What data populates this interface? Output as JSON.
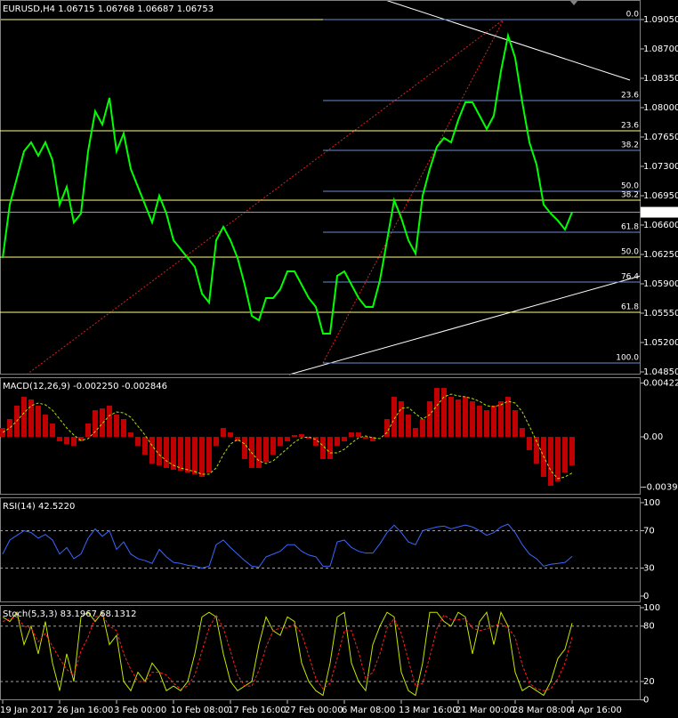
{
  "chart_data": [
    {
      "type": "line",
      "title": "EURUSD,H4  1.06715 1.06768 1.06687 1.06753",
      "color": "#00ff00",
      "values": [
        1.06207,
        1.06844,
        1.07162,
        1.0748,
        1.07586,
        1.07427,
        1.07586,
        1.07374,
        1.06844,
        1.07056,
        1.06632,
        1.06738,
        1.0748,
        1.07957,
        1.07798,
        1.08116,
        1.0748,
        1.07692,
        1.07268,
        1.07056,
        1.06844,
        1.06632,
        1.0695,
        1.06738,
        1.06419,
        1.06313,
        1.06207,
        1.06101,
        1.05783,
        1.05677,
        1.06419,
        1.06579,
        1.06419,
        1.06207,
        1.05889,
        1.05518,
        1.05465,
        1.0573,
        1.0573,
        1.05836,
        1.06048,
        1.06048,
        1.05889,
        1.0573,
        1.05624,
        1.05306,
        1.05306,
        1.05995,
        1.06048,
        1.05889,
        1.0573,
        1.05624,
        1.05624,
        1.05942,
        1.06419,
        1.06897,
        1.06685,
        1.06419,
        1.0626,
        1.0695,
        1.07268,
        1.07533,
        1.07639,
        1.07586,
        1.07851,
        1.08063,
        1.08063,
        1.07904,
        1.07745,
        1.07904,
        1.08435,
        1.08859,
        1.08594,
        1.08063,
        1.07586,
        1.07321,
        1.06844,
        1.06738,
        1.06653,
        1.06547,
        1.06753
      ],
      "ylim": [
        1.04818,
        1.09283
      ],
      "yticks": [
        {
          "value": 1.0905,
          "label": "1.09050"
        },
        {
          "value": 1.087,
          "label": "1.08700"
        },
        {
          "value": 1.0835,
          "label": "1.08350"
        },
        {
          "value": 1.08,
          "label": "1.08000"
        },
        {
          "value": 1.0765,
          "label": "1.07650"
        },
        {
          "value": 1.073,
          "label": "1.07300"
        },
        {
          "value": 1.0695,
          "label": "1.06950"
        },
        {
          "value": 1.066,
          "label": "1.06600"
        },
        {
          "value": 1.0625,
          "label": "1.06250"
        },
        {
          "value": 1.059,
          "label": "1.05900"
        },
        {
          "value": 1.0555,
          "label": "1.05550"
        },
        {
          "value": 1.052,
          "label": "1.05200"
        },
        {
          "value": 1.0485,
          "label": "1.04850"
        }
      ],
      "fib_blue": {
        "color": "#6c8cd5",
        "levels": [
          {
            "label": "0.0",
            "value": 1.0905
          },
          {
            "label": "23.6",
            "value": 1.08085
          },
          {
            "label": "38.2",
            "value": 1.07491
          },
          {
            "label": "50.0",
            "value": 1.07003
          },
          {
            "label": "61.8",
            "value": 1.06515
          },
          {
            "label": "76.4",
            "value": 1.05921
          },
          {
            "label": "100.0",
            "value": 1.04956
          }
        ]
      },
      "fib_yellow": {
        "color": "#ffff80",
        "levels": [
          {
            "label": "23.6",
            "value": 1.07724
          },
          {
            "label": "38.2",
            "value": 1.06897
          },
          {
            "label": "50.0",
            "value": 1.06218
          },
          {
            "label": "61.8",
            "value": 1.0556
          }
        ]
      },
      "price_marker": {
        "value": 1.06753,
        "label": "1.06753"
      }
    },
    {
      "type": "macd",
      "title": "MACD(12,26,9) -0.002250 -0.002846",
      "color": "#c00000",
      "signal_color": "#b4e000",
      "values": [
        0.0007,
        0.0014,
        0.00245,
        0.00315,
        0.00294,
        0.00245,
        0.00175,
        0.00105,
        -0.00035,
        -0.00056,
        -0.0007,
        -0.00035,
        0.00105,
        0.0021,
        0.00224,
        0.00245,
        0.00175,
        0.0014,
        0.00035,
        -0.0007,
        -0.0014,
        -0.0021,
        -0.00224,
        -0.00245,
        -0.00259,
        -0.00266,
        -0.0028,
        -0.00294,
        -0.00315,
        -0.0028,
        -0.0007,
        0.0007,
        0.00035,
        -0.00035,
        -0.00175,
        -0.00245,
        -0.00245,
        -0.00196,
        -0.0014,
        -0.0007,
        -0.00035,
        0.00014,
        0.00021,
        -0.00014,
        -0.0007,
        -0.00175,
        -0.00175,
        -0.0007,
        -0.00035,
        0.00035,
        0.00035,
        -0.00014,
        -0.00035,
        0,
        0.0014,
        0.00315,
        0.0028,
        0.00175,
        0.0007,
        0.0014,
        0.0028,
        0.00385,
        0.00385,
        0.00315,
        0.00294,
        0.00315,
        0.0028,
        0.00245,
        0.0021,
        0.00245,
        0.0028,
        0.00315,
        0.0021,
        0.0007,
        -0.00105,
        -0.0021,
        -0.00315,
        -0.00385,
        -0.0035,
        -0.0028,
        -0.00225
      ],
      "signal": [
        0.00035,
        0.0007,
        0.00126,
        0.00189,
        0.00245,
        0.00266,
        0.00252,
        0.0021,
        0.0014,
        0.0007,
        0.00014,
        -0.00028,
        -0.00014,
        0.00042,
        0.00105,
        0.00168,
        0.00196,
        0.00189,
        0.00154,
        0.00084,
        0.00014,
        -0.0007,
        -0.0014,
        -0.00189,
        -0.00224,
        -0.00245,
        -0.00259,
        -0.00273,
        -0.00294,
        -0.00294,
        -0.00245,
        -0.0014,
        -0.00056,
        -0.00021,
        -0.00056,
        -0.00126,
        -0.00189,
        -0.0021,
        -0.00189,
        -0.0014,
        -0.00091,
        -0.00042,
        -7e-05,
        0,
        -0.00021,
        -0.0007,
        -0.00126,
        -0.00126,
        -0.00098,
        -0.00049,
        -7e-05,
        7e-05,
        -7e-05,
        -0.00014,
        0.00035,
        0.0014,
        0.00224,
        0.00231,
        0.00182,
        0.0014,
        0.00175,
        0.00245,
        0.00315,
        0.00336,
        0.00322,
        0.00315,
        0.00301,
        0.0028,
        0.00245,
        0.00238,
        0.00252,
        0.0028,
        0.00266,
        0.00196,
        0.00084,
        -0.00035,
        -0.00154,
        -0.00266,
        -0.00329,
        -0.00315,
        -0.002846
      ],
      "ylim": [
        -0.00455,
        0.00469
      ],
      "yticks": [
        0.004227,
        {
          "value": 0,
          "label": "0.00"
        },
        -0.003961
      ]
    },
    {
      "type": "line",
      "title": "RSI(14) 42.5220",
      "color": "#3a66ff",
      "values": [
        45,
        60,
        65,
        70,
        68,
        62,
        66,
        60,
        45,
        52,
        40,
        45,
        62,
        72,
        64,
        70,
        50,
        58,
        45,
        40,
        38,
        35,
        50,
        42,
        36,
        35,
        33,
        32,
        30,
        32,
        55,
        60,
        52,
        45,
        38,
        32,
        31,
        42,
        45,
        48,
        55,
        55,
        48,
        44,
        42,
        32,
        32,
        58,
        60,
        52,
        48,
        46,
        46,
        56,
        68,
        76,
        68,
        58,
        55,
        70,
        72,
        74,
        75,
        72,
        74,
        76,
        74,
        70,
        65,
        68,
        74,
        77,
        68,
        55,
        45,
        40,
        32,
        34,
        35,
        36,
        42.522
      ],
      "ylim": [
        -6.7,
        105.7
      ],
      "yticks": [
        100,
        70,
        30,
        0
      ],
      "levels": [
        70,
        30
      ]
    },
    {
      "type": "line",
      "title": "Stoch(5,3,3) 83.1967 68.1312",
      "series": [
        {
          "color": "#c8e600",
          "values": [
            90,
            85,
            95,
            60,
            80,
            50,
            85,
            40,
            10,
            50,
            20,
            90,
            95,
            85,
            95,
            60,
            70,
            20,
            10,
            30,
            20,
            40,
            30,
            10,
            15,
            10,
            20,
            50,
            90,
            95,
            90,
            50,
            20,
            10,
            15,
            20,
            60,
            90,
            75,
            70,
            90,
            85,
            40,
            20,
            10,
            5,
            40,
            90,
            95,
            40,
            20,
            10,
            60,
            80,
            95,
            90,
            30,
            10,
            5,
            40,
            95,
            95,
            85,
            80,
            95,
            90,
            50,
            85,
            95,
            60,
            95,
            80,
            30,
            10,
            15,
            10,
            5,
            20,
            45,
            55,
            83.1967
          ]
        },
        {
          "color": "#ff2020",
          "dashed": true,
          "values": [
            85,
            88,
            90,
            80,
            78,
            63,
            72,
            58,
            45,
            33,
            27,
            53,
            68,
            90,
            92,
            80,
            75,
            50,
            33,
            20,
            20,
            30,
            30,
            27,
            18,
            12,
            15,
            27,
            53,
            78,
            92,
            78,
            53,
            27,
            15,
            15,
            32,
            57,
            75,
            78,
            78,
            82,
            72,
            48,
            23,
            12,
            18,
            45,
            75,
            75,
            52,
            23,
            30,
            50,
            78,
            88,
            72,
            43,
            15,
            18,
            47,
            77,
            92,
            87,
            87,
            88,
            78,
            75,
            77,
            80,
            83,
            78,
            68,
            38,
            18,
            12,
            10,
            12,
            23,
            40,
            68.1312
          ]
        }
      ],
      "ylim": [
        -0.3,
        102.9
      ],
      "yticks": [
        100,
        80,
        20,
        0
      ],
      "levels": [
        80,
        20
      ],
      "categories": [
        "19 Jan 2017",
        null,
        null,
        null,
        null,
        null,
        null,
        null,
        "26 Jan 16:00",
        null,
        null,
        null,
        null,
        null,
        null,
        null,
        "3 Feb 00:00",
        null,
        null,
        null,
        null,
        null,
        null,
        null,
        "10 Feb 08:00",
        null,
        null,
        null,
        null,
        null,
        null,
        null,
        "17 Feb 16:00",
        null,
        null,
        null,
        null,
        null,
        null,
        null,
        "27 Feb 00:00",
        null,
        null,
        null,
        null,
        null,
        null,
        null,
        "6 Mar 08:00",
        null,
        null,
        null,
        null,
        null,
        null,
        null,
        "13 Mar 16:00",
        null,
        null,
        null,
        null,
        null,
        null,
        null,
        "21 Mar 00:00",
        null,
        null,
        null,
        null,
        null,
        null,
        null,
        "28 Mar 08:00",
        null,
        null,
        null,
        null,
        null,
        null,
        null,
        "4 Apr 16:00"
      ]
    }
  ]
}
